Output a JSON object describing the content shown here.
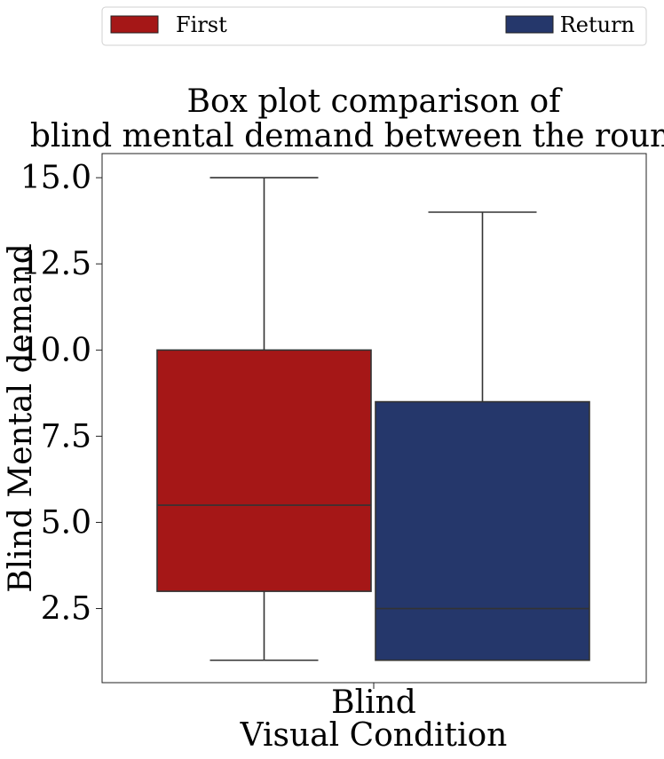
{
  "chart_data": {
    "type": "box",
    "title_lines": [
      "Box plot comparison of",
      "blind mental demand between the rounds."
    ],
    "xlabel": "Visual Condition",
    "ylabel": "Blind Mental demand",
    "categories": [
      "Blind"
    ],
    "ylim": [
      0.35,
      15.7
    ],
    "yticks": [
      2.5,
      5.0,
      7.5,
      10.0,
      12.5,
      15.0
    ],
    "ytick_labels": [
      "2.5",
      "5.0",
      "7.5",
      "10.0",
      "12.5",
      "15.0"
    ],
    "grid": false,
    "legend_position": "top",
    "series": [
      {
        "name": "First",
        "color": "#a51717",
        "min": 1,
        "q1": 3,
        "median": 5.5,
        "q3": 10,
        "max": 15
      },
      {
        "name": "Return",
        "color": "#25376b",
        "min": 1,
        "q1": 1,
        "median": 2.5,
        "q3": 8.5,
        "max": 14
      }
    ]
  }
}
